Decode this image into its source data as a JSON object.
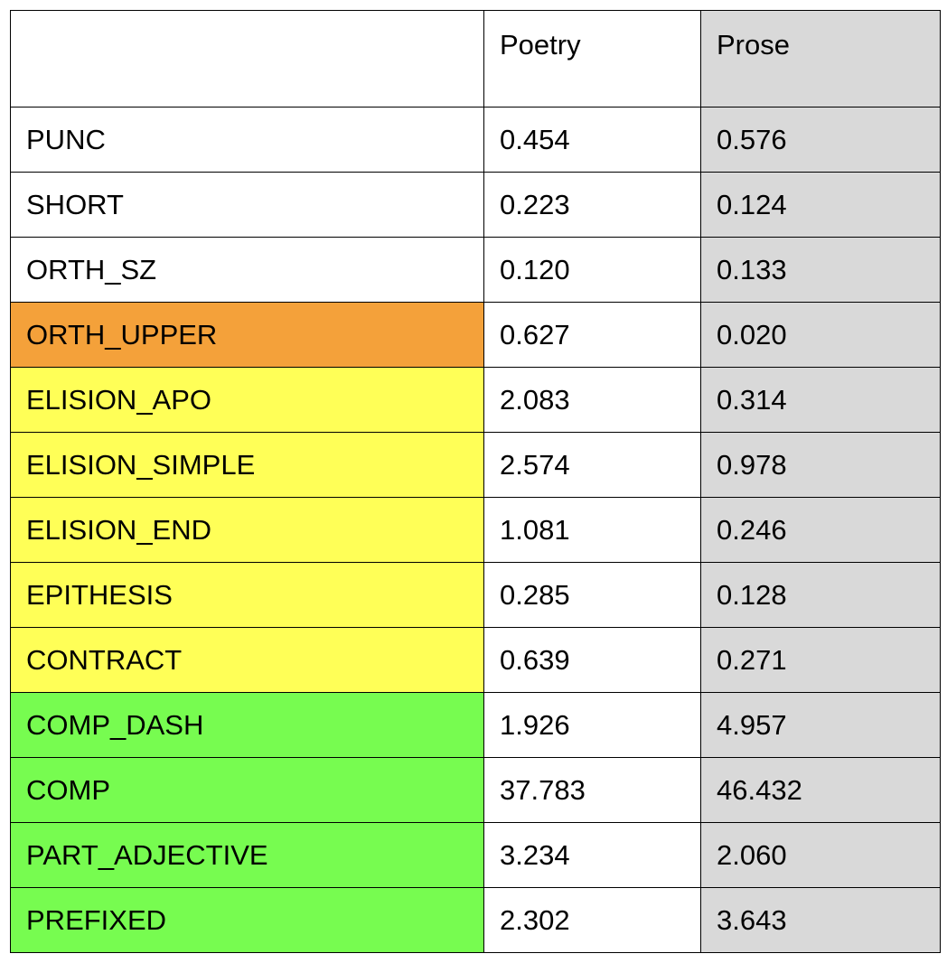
{
  "table": {
    "headers": [
      "",
      "Poetry",
      "Prose"
    ],
    "colors": {
      "prose_column": "#d9d9d9",
      "orange": "#f4a13a",
      "yellow": "#ffff57",
      "green": "#77fc50",
      "white": "#ffffff"
    },
    "rows": [
      {
        "label": "PUNC",
        "poetry": "0.454",
        "prose": "0.576",
        "label_color": "white"
      },
      {
        "label": "SHORT",
        "poetry": "0.223",
        "prose": "0.124",
        "label_color": "white"
      },
      {
        "label": "ORTH_SZ",
        "poetry": "0.120",
        "prose": "0.133",
        "label_color": "white"
      },
      {
        "label": "ORTH_UPPER",
        "poetry": "0.627",
        "prose": "0.020",
        "label_color": "orange"
      },
      {
        "label": "ELISION_APO",
        "poetry": "2.083",
        "prose": "0.314",
        "label_color": "yellow"
      },
      {
        "label": "ELISION_SIMPLE",
        "poetry": "2.574",
        "prose": "0.978",
        "label_color": "yellow"
      },
      {
        "label": "ELISION_END",
        "poetry": "1.081",
        "prose": "0.246",
        "label_color": "yellow"
      },
      {
        "label": "EPITHESIS",
        "poetry": "0.285",
        "prose": "0.128",
        "label_color": "yellow"
      },
      {
        "label": "CONTRACT",
        "poetry": "0.639",
        "prose": "0.271",
        "label_color": "yellow"
      },
      {
        "label": "COMP_DASH",
        "poetry": "1.926",
        "prose": "4.957",
        "label_color": "green"
      },
      {
        "label": "COMP",
        "poetry": "37.783",
        "prose": "46.432",
        "label_color": "green"
      },
      {
        "label": "PART_ADJECTIVE",
        "poetry": "3.234",
        "prose": "2.060",
        "label_color": "green"
      },
      {
        "label": "PREFIXED",
        "poetry": "2.302",
        "prose": "3.643",
        "label_color": "green"
      }
    ]
  }
}
